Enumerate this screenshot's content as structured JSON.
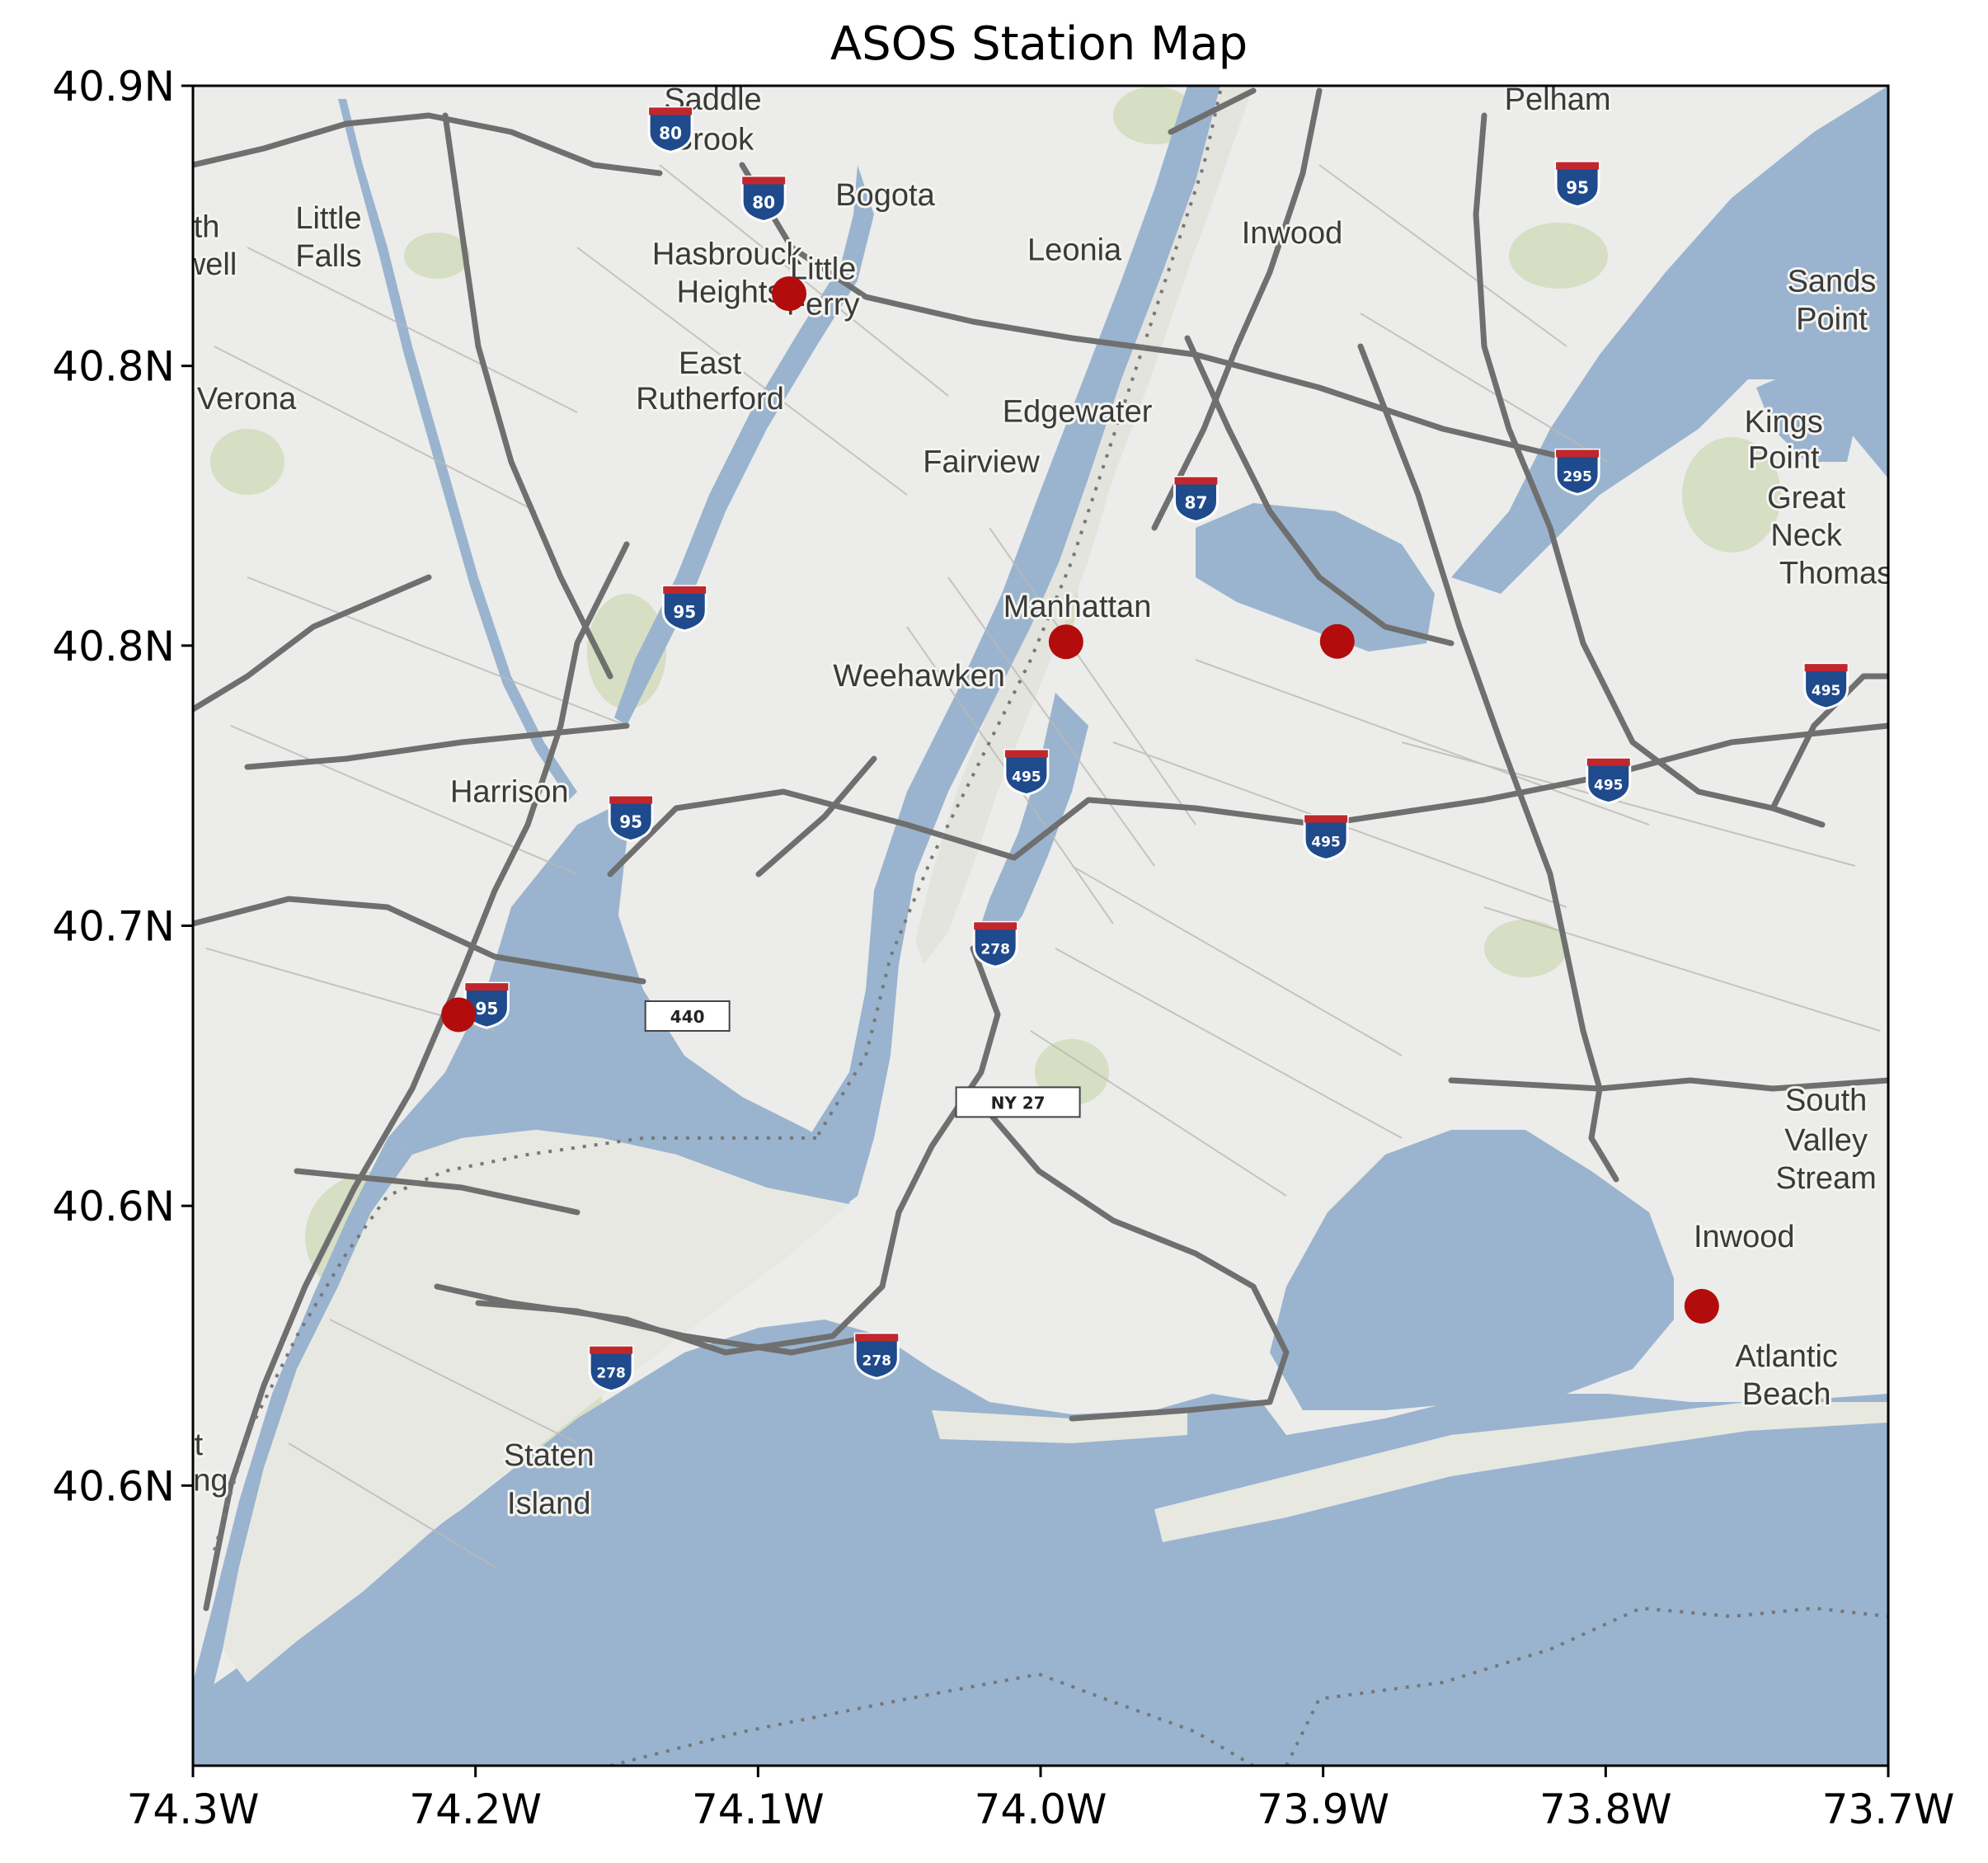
{
  "title": "ASOS Station Map",
  "chart_data": {
    "type": "scatter",
    "xlim": [
      -74.3,
      -73.7
    ],
    "ylim": [
      40.5,
      40.9
    ],
    "x_tick_values": [
      -74.3,
      -74.2,
      -74.1,
      -74.0,
      -73.9,
      -73.8,
      -73.7
    ],
    "x_tick_labels": [
      "74.3W",
      "74.2W",
      "74.1W",
      "74.0W",
      "73.9W",
      "73.8W",
      "73.7W"
    ],
    "y_tick_values": [
      40.9,
      40.8333,
      40.7667,
      40.7,
      40.6333,
      40.5667
    ],
    "y_tick_labels": [
      "40.9N",
      "40.8N",
      "40.8N",
      "40.7N",
      "40.6N",
      "40.6N"
    ],
    "grid": false,
    "marker_color": "#b30c0c",
    "points": [
      {
        "lon": -74.089,
        "lat": 40.8505
      },
      {
        "lon": -73.991,
        "lat": 40.7676
      },
      {
        "lon": -73.895,
        "lat": 40.7677
      },
      {
        "lon": -74.206,
        "lat": 40.6788
      },
      {
        "lon": -73.766,
        "lat": 40.6094
      }
    ]
  },
  "basemap": {
    "water_color": "#9ab4cf",
    "land_color": "#ececea",
    "road_color": "#6f6f6f",
    "place_labels": [
      {
        "text": "Saddle",
        "lon": -74.116,
        "lat": 40.8943
      },
      {
        "text": "Brook",
        "lon": -74.116,
        "lat": 40.8848
      },
      {
        "text": "Pelham",
        "lon": -73.817,
        "lat": 40.8943
      },
      {
        "text": "Bogota",
        "lon": -74.055,
        "lat": 40.8715
      },
      {
        "text": "Little",
        "lon": -74.252,
        "lat": 40.866
      },
      {
        "text": "Falls",
        "lon": -74.252,
        "lat": 40.857
      },
      {
        "text": "rth",
        "lon": -74.297,
        "lat": 40.864
      },
      {
        "text": "well",
        "lon": -74.294,
        "lat": 40.855
      },
      {
        "text": "Hasbrouck",
        "lon": -74.111,
        "lat": 40.8575
      },
      {
        "text": "Heights",
        "lon": -74.11,
        "lat": 40.8485
      },
      {
        "text": "Little",
        "lon": -74.077,
        "lat": 40.854
      },
      {
        "text": "Ferry",
        "lon": -74.077,
        "lat": 40.8455
      },
      {
        "text": "Leonia",
        "lon": -73.988,
        "lat": 40.8585
      },
      {
        "text": "Inwood",
        "lon": -73.911,
        "lat": 40.8625
      },
      {
        "text": "Sands",
        "lon": -73.72,
        "lat": 40.851
      },
      {
        "text": "Point",
        "lon": -73.72,
        "lat": 40.842
      },
      {
        "text": "East",
        "lon": -74.117,
        "lat": 40.8315
      },
      {
        "text": "Rutherford",
        "lon": -74.117,
        "lat": 40.823
      },
      {
        "text": "Verona",
        "lon": -74.281,
        "lat": 40.823
      },
      {
        "text": "Edgewater",
        "lon": -73.987,
        "lat": 40.82
      },
      {
        "text": "Kings",
        "lon": -73.737,
        "lat": 40.8175
      },
      {
        "text": "Point",
        "lon": -73.737,
        "lat": 40.809
      },
      {
        "text": "Fairview",
        "lon": -74.021,
        "lat": 40.808
      },
      {
        "text": "Great",
        "lon": -73.729,
        "lat": 40.7995
      },
      {
        "text": "Neck",
        "lon": -73.729,
        "lat": 40.7905
      },
      {
        "text": "Thomast",
        "lon": -73.717,
        "lat": 40.7815
      },
      {
        "text": "Manhattan",
        "lon": -73.987,
        "lat": 40.7735
      },
      {
        "text": "Weehawken",
        "lon": -74.043,
        "lat": 40.757
      },
      {
        "text": "Harrison",
        "lon": -74.188,
        "lat": 40.7295
      },
      {
        "text": "South",
        "lon": -73.722,
        "lat": 40.656
      },
      {
        "text": "Valley",
        "lon": -73.722,
        "lat": 40.6465
      },
      {
        "text": "Stream",
        "lon": -73.722,
        "lat": 40.6375
      },
      {
        "text": "Inwood",
        "lon": -73.751,
        "lat": 40.6235
      },
      {
        "text": "Atlantic",
        "lon": -73.736,
        "lat": 40.595
      },
      {
        "text": "Beach",
        "lon": -73.736,
        "lat": 40.586
      },
      {
        "text": "Staten",
        "lon": -74.174,
        "lat": 40.5715
      },
      {
        "text": "Island",
        "lon": -74.174,
        "lat": 40.56
      },
      {
        "text": "t",
        "lon": -74.298,
        "lat": 40.574
      },
      {
        "text": "ing",
        "lon": -74.295,
        "lat": 40.5655
      }
    ],
    "interstate_shields": [
      {
        "number": "80",
        "lon": -74.131,
        "lat": 40.8905
      },
      {
        "number": "80",
        "lon": -74.098,
        "lat": 40.874
      },
      {
        "number": "95",
        "lon": -73.81,
        "lat": 40.8775
      },
      {
        "number": "295",
        "lon": -73.81,
        "lat": 40.809
      },
      {
        "number": "87",
        "lon": -73.945,
        "lat": 40.8025
      },
      {
        "number": "95",
        "lon": -74.126,
        "lat": 40.7765
      },
      {
        "number": "495",
        "lon": -73.722,
        "lat": 40.758
      },
      {
        "number": "495",
        "lon": -74.005,
        "lat": 40.7375
      },
      {
        "number": "495",
        "lon": -73.799,
        "lat": 40.7355
      },
      {
        "number": "95",
        "lon": -74.145,
        "lat": 40.7265
      },
      {
        "number": "495",
        "lon": -73.899,
        "lat": 40.722
      },
      {
        "number": "278",
        "lon": -74.016,
        "lat": 40.6965
      },
      {
        "number": "95",
        "lon": -74.196,
        "lat": 40.682
      },
      {
        "number": "278",
        "lon": -74.152,
        "lat": 40.5955
      },
      {
        "number": "278",
        "lon": -74.058,
        "lat": 40.5985
      }
    ],
    "route_signs": [
      {
        "text": "440",
        "lon": -74.125,
        "lat": 40.6785
      },
      {
        "text": "NY 27",
        "lon": -74.008,
        "lat": 40.658
      }
    ]
  }
}
